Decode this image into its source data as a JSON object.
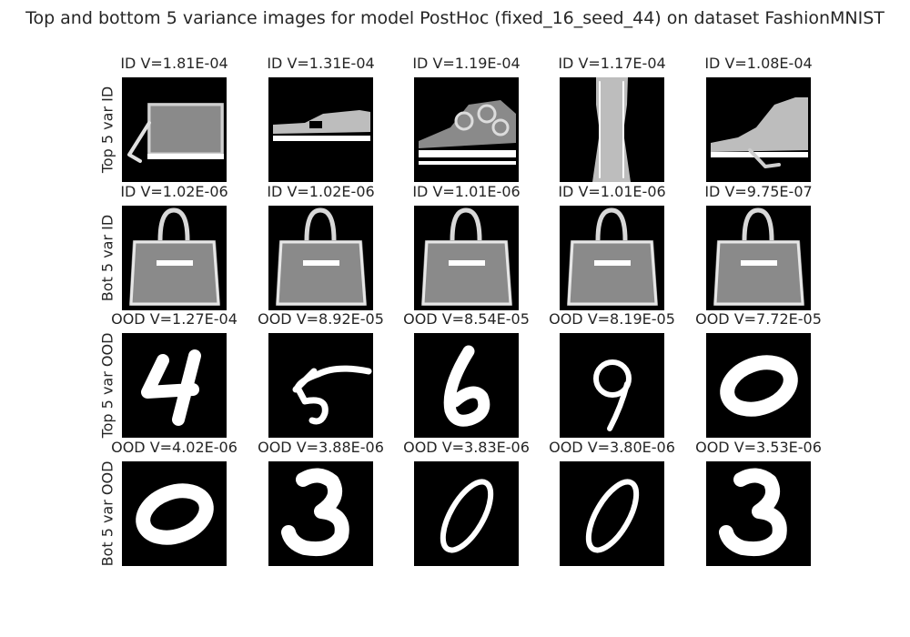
{
  "chart_data": {
    "type": "image-grid",
    "title": "Top and bottom 5 variance images for model PostHoc (fixed_16_seed_44) on dataset FashionMNIST",
    "rows": [
      {
        "label": "Top 5 var ID",
        "items": [
          {
            "title": "ID V=1.81E-04",
            "value": 0.000181,
            "icon": "bag-icon"
          },
          {
            "title": "ID V=1.31E-04",
            "value": 0.000131,
            "icon": "sneaker-icon"
          },
          {
            "title": "ID V=1.19E-04",
            "value": 0.000119,
            "icon": "sandal-icon"
          },
          {
            "title": "ID V=1.17E-04",
            "value": 0.000117,
            "icon": "dress-icon"
          },
          {
            "title": "ID V=1.08E-04",
            "value": 0.000108,
            "icon": "ankle-boot-icon"
          }
        ]
      },
      {
        "label": "Bot 5 var ID",
        "items": [
          {
            "title": "ID V=1.02E-06",
            "value": 1.02e-06,
            "icon": "handbag-icon"
          },
          {
            "title": "ID V=1.02E-06",
            "value": 1.02e-06,
            "icon": "handbag-icon"
          },
          {
            "title": "ID V=1.01E-06",
            "value": 1.01e-06,
            "icon": "handbag-icon"
          },
          {
            "title": "ID V=1.01E-06",
            "value": 1.01e-06,
            "icon": "handbag-icon"
          },
          {
            "title": "ID V=9.75E-07",
            "value": 9.75e-07,
            "icon": "handbag-icon"
          }
        ]
      },
      {
        "label": "Top 5 var OOD",
        "items": [
          {
            "title": "OOD V=1.27E-04",
            "value": 0.000127,
            "icon": "digit-4-icon"
          },
          {
            "title": "OOD V=8.92E-05",
            "value": 8.92e-05,
            "icon": "digit-5-icon"
          },
          {
            "title": "OOD V=8.54E-05",
            "value": 8.54e-05,
            "icon": "digit-6-icon"
          },
          {
            "title": "OOD V=8.19E-05",
            "value": 8.19e-05,
            "icon": "digit-9-icon"
          },
          {
            "title": "OOD V=7.72E-05",
            "value": 7.72e-05,
            "icon": "digit-0-icon"
          }
        ]
      },
      {
        "label": "Bot 5 var OOD",
        "items": [
          {
            "title": "OOD V=4.02E-06",
            "value": 4.02e-06,
            "icon": "digit-0-icon"
          },
          {
            "title": "OOD V=3.88E-06",
            "value": 3.88e-06,
            "icon": "digit-3-icon"
          },
          {
            "title": "OOD V=3.83E-06",
            "value": 3.83e-06,
            "icon": "digit-0-slanted-icon"
          },
          {
            "title": "OOD V=3.80E-06",
            "value": 3.8e-06,
            "icon": "digit-0-slanted-icon"
          },
          {
            "title": "OOD V=3.53E-06",
            "value": 3.53e-06,
            "icon": "digit-3-icon"
          }
        ]
      }
    ]
  }
}
